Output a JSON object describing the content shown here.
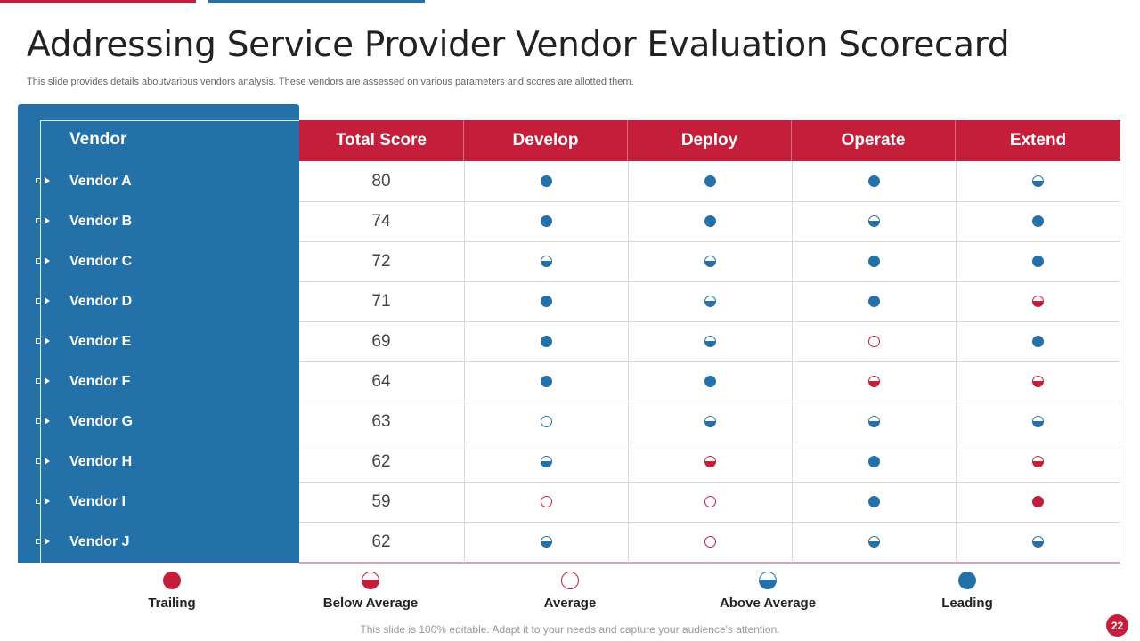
{
  "slide": {
    "title": "Addressing Service Provider Vendor Evaluation Scorecard",
    "subtitle": "This slide provides details aboutvarious vendors analysis. These vendors are assessed on various parameters and scores are allotted them.",
    "footer": "This slide is 100% editable. Adapt it to your needs and capture your audience's attention.",
    "page_number": "22"
  },
  "colors": {
    "accent_red": "#c41e3a",
    "accent_blue": "#2371a8"
  },
  "table": {
    "columns": [
      "Vendor",
      "Total Score",
      "Develop",
      "Deploy",
      "Operate",
      "Extend"
    ],
    "rows": [
      {
        "vendor": "Vendor A",
        "score": "80",
        "ratings": [
          "leading",
          "leading",
          "leading",
          "above"
        ]
      },
      {
        "vendor": "Vendor B",
        "score": "74",
        "ratings": [
          "leading",
          "leading",
          "above",
          "leading"
        ]
      },
      {
        "vendor": "Vendor C",
        "score": "72",
        "ratings": [
          "above",
          "above",
          "leading",
          "leading"
        ]
      },
      {
        "vendor": "Vendor D",
        "score": "71",
        "ratings": [
          "leading",
          "above",
          "leading",
          "below"
        ]
      },
      {
        "vendor": "Vendor E",
        "score": "69",
        "ratings": [
          "leading",
          "above",
          "average",
          "leading"
        ]
      },
      {
        "vendor": "Vendor F",
        "score": "64",
        "ratings": [
          "leading",
          "leading",
          "below",
          "below"
        ]
      },
      {
        "vendor": "Vendor G",
        "score": "63",
        "ratings": [
          "average_blue",
          "above",
          "above",
          "above"
        ]
      },
      {
        "vendor": "Vendor H",
        "score": "62",
        "ratings": [
          "above",
          "below",
          "leading",
          "below"
        ]
      },
      {
        "vendor": "Vendor I",
        "score": "59",
        "ratings": [
          "average",
          "average",
          "leading",
          "trailing"
        ]
      },
      {
        "vendor": "Vendor J",
        "score": "62",
        "ratings": [
          "above",
          "average",
          "above",
          "above"
        ]
      }
    ]
  },
  "legend": [
    {
      "key": "trailing",
      "label": "Trailing"
    },
    {
      "key": "below",
      "label": "Below Average"
    },
    {
      "key": "average",
      "label": "Average"
    },
    {
      "key": "above",
      "label": "Above Average"
    },
    {
      "key": "leading",
      "label": "Leading"
    }
  ]
}
